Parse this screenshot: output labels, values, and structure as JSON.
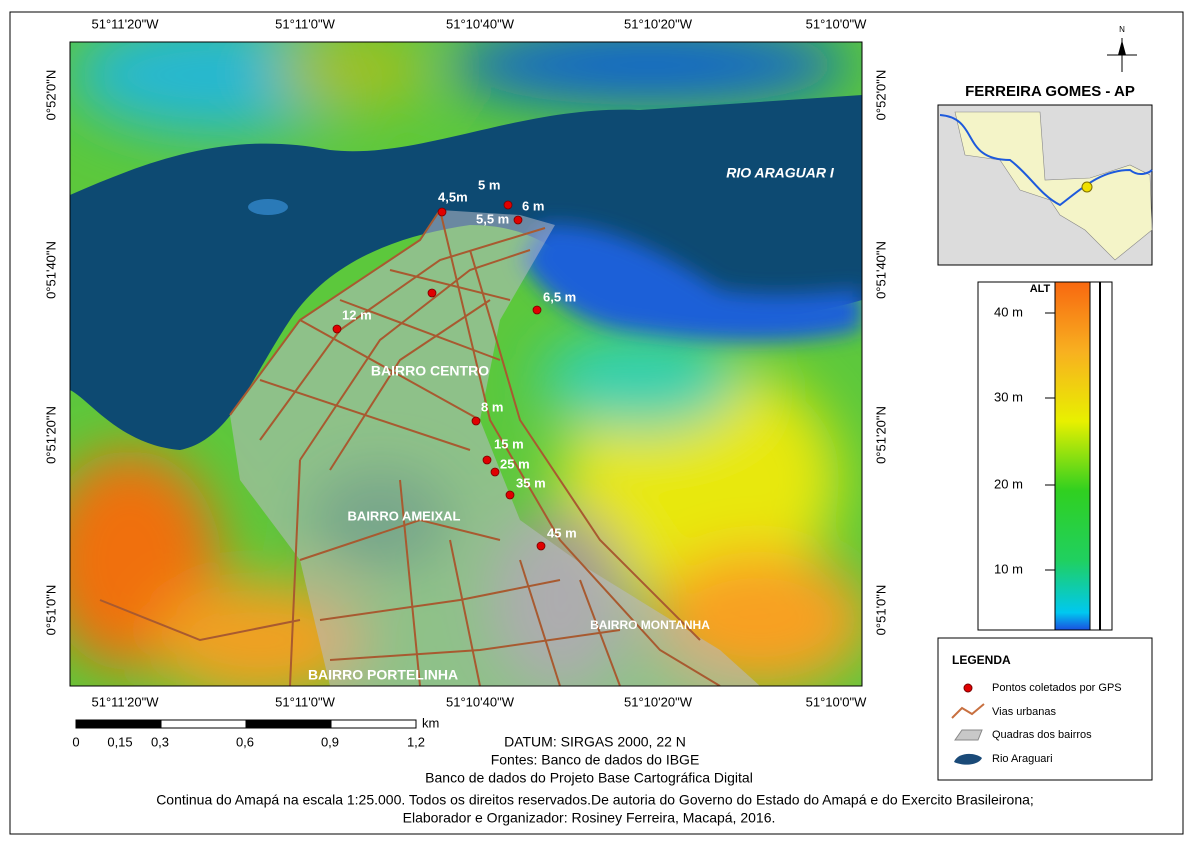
{
  "map": {
    "coordinates": {
      "top": [
        "51°11'20\"W",
        "51°11'0\"W",
        "51°10'40\"W",
        "51°10'20\"W",
        "51°10'0\"W"
      ],
      "bottom": [
        "51°11'20\"W",
        "51°11'0\"W",
        "51°10'40\"W",
        "51°10'20\"W",
        "51°10'0\"W"
      ],
      "left": [
        "0°52'0\"N",
        "0°51'40\"N",
        "0°51'20\"N",
        "0°51'0\"N"
      ],
      "right": [
        "0°52'0\"N",
        "0°51'40\"N",
        "0°51'20\"N",
        "0°51'0\"N"
      ]
    },
    "river_label": "RIO ARAGUAR I",
    "point_labels": [
      "4,5m",
      "5 m",
      "6 m",
      "5,5 m",
      "6,5 m",
      "12 m",
      "8 m",
      "15 m",
      "25 m",
      "35 m",
      "45 m"
    ],
    "neighborhoods": [
      "BAIRRO CENTRO",
      "BAIRRO AMEIXAL",
      "BAIRRO MONTANHA",
      "BAIRRO PORTELINHA"
    ]
  },
  "north_arrow": "N",
  "inset": {
    "title": "FERREIRA GOMES - AP"
  },
  "elevation_scale": {
    "title": "ALT",
    "ticks": [
      "40 m",
      "30 m",
      "20 m",
      "10 m"
    ]
  },
  "legend": {
    "title": "LEGENDA",
    "items": [
      "Pontos coletados por GPS",
      "Vias urbanas",
      "Quadras dos bairros",
      "Rio Araguari"
    ]
  },
  "scale_bar": {
    "labels": [
      "0",
      "0,15",
      "0,3",
      "0,6",
      "0,9",
      "1,2"
    ],
    "unit": "km"
  },
  "footer": [
    "DATUM:  SIRGAS 2000, 22 N",
    "Fontes: Banco de dados do IBGE",
    "Banco de dados do Projeto Base Cartográfica Digital",
    "Continua do Amapá na  escala 1:25.000. Todos os direitos reservados.De autoria do Governo do Estado do Amapá e do Exercito Brasileirona;",
    "Elaborador e Organizador: Rosiney Ferreira, Macapá, 2016."
  ]
}
